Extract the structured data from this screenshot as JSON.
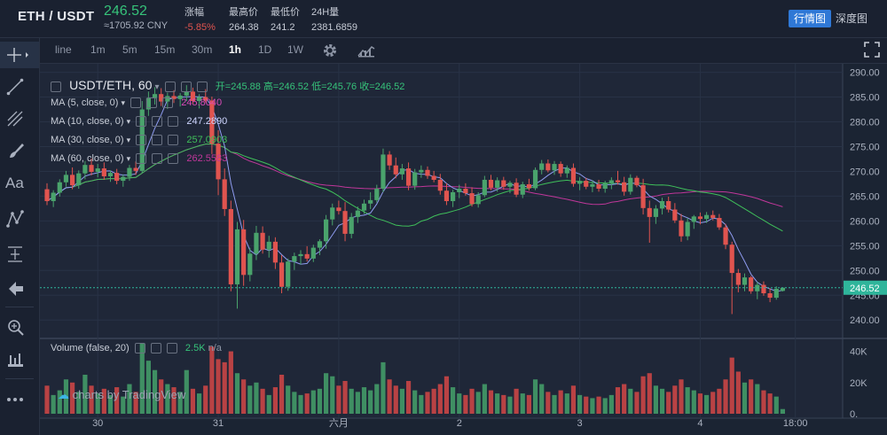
{
  "header": {
    "pair": "ETH / USDT",
    "last_price": "246.52",
    "cny_price": "≈1705.92 CNY",
    "stats": [
      {
        "label": "涨幅",
        "value": "-5.85%",
        "negative": true
      },
      {
        "label": "最高价",
        "value": "264.38",
        "negative": false
      },
      {
        "label": "最低价",
        "value": "241.2",
        "negative": false
      },
      {
        "label": "24H量",
        "value": "2381.6859",
        "negative": false
      }
    ],
    "tabs": [
      {
        "label": "行情图",
        "active": true
      },
      {
        "label": "深度图",
        "active": false
      }
    ]
  },
  "intervals": [
    {
      "label": "line",
      "active": false
    },
    {
      "label": "1m",
      "active": false
    },
    {
      "label": "5m",
      "active": false
    },
    {
      "label": "15m",
      "active": false
    },
    {
      "label": "30m",
      "active": false
    },
    {
      "label": "1h",
      "active": true
    },
    {
      "label": "1D",
      "active": false
    },
    {
      "label": "1W",
      "active": false
    }
  ],
  "toolbar_icons": [
    "settings-gear-icon",
    "indicators-icon",
    "fullscreen-icon"
  ],
  "left_tools": [
    "crosshair-icon",
    "trend-line-icon",
    "fib-icon",
    "brush-icon",
    "text-icon",
    "pattern-icon",
    "measure-icon",
    "back-arrow-icon",
    "zoom-icon",
    "magnet-icon",
    "more-icon"
  ],
  "legend": {
    "symbol": "USDT/ETH, 60",
    "open_label": "开=",
    "open": "245.88",
    "high_label": "高=",
    "high": "246.52",
    "low_label": "低=",
    "low": "245.76",
    "close_label": "收=",
    "close": "246.52",
    "ma": [
      {
        "label": "MA (5, close, 0)",
        "value": "245.8040",
        "color": "#d94bb8"
      },
      {
        "label": "MA (10, close, 0)",
        "value": "247.2890",
        "color": "#cfd6ff"
      },
      {
        "label": "MA (30, close, 0)",
        "value": "257.0903",
        "color": "#3fbf5a"
      },
      {
        "label": "MA (60, close, 0)",
        "value": "262.5583",
        "color": "#c0379a"
      }
    ],
    "volume_label": "Volume (false, 20)",
    "volume_value": "2.5K",
    "volume_na": "n/a"
  },
  "watermark": "charts by TradingView",
  "chart_data": {
    "type": "candlestick",
    "interval": "1h",
    "current_price": 246.52,
    "price_axis": {
      "ticks": [
        240,
        245,
        250,
        255,
        260,
        265,
        270,
        275,
        280,
        285,
        290
      ],
      "range": [
        237,
        291
      ]
    },
    "volume_axis": {
      "ticks": [
        "0.",
        "20K",
        "40K"
      ],
      "range": [
        0,
        46
      ]
    },
    "time_labels": [
      {
        "label": "30",
        "index": 8
      },
      {
        "label": "31",
        "index": 27
      },
      {
        "label": "六月",
        "index": 46
      },
      {
        "label": "2",
        "index": 65
      },
      {
        "label": "3",
        "index": 84
      },
      {
        "label": "4",
        "index": 103
      },
      {
        "label": "18:00",
        "index": 118
      }
    ],
    "colors": {
      "up": "#4aa36c",
      "down": "#e0544f",
      "ma5": "#8f9cf0",
      "ma30": "#3fbf5a",
      "ma60": "#c0379a",
      "price_line": "#2fb59b"
    },
    "candles": [
      [
        266.4,
        267.6,
        263.2,
        264.0,
        18
      ],
      [
        264.0,
        266.2,
        262.8,
        265.7,
        12
      ],
      [
        265.7,
        268.4,
        264.9,
        267.8,
        15
      ],
      [
        267.8,
        270.1,
        266.9,
        269.3,
        22
      ],
      [
        269.3,
        270.8,
        266.4,
        267.2,
        20
      ],
      [
        267.2,
        270.2,
        266.5,
        269.6,
        14
      ],
      [
        269.6,
        272.1,
        268.4,
        271.3,
        25
      ],
      [
        271.3,
        272.6,
        269.2,
        269.9,
        18
      ],
      [
        269.9,
        271.5,
        268.8,
        270.6,
        13
      ],
      [
        270.6,
        271.8,
        268.3,
        269.0,
        16
      ],
      [
        269.0,
        270.2,
        267.9,
        269.7,
        12
      ],
      [
        269.7,
        270.5,
        267.4,
        268.1,
        17
      ],
      [
        268.1,
        269.4,
        266.9,
        268.9,
        11
      ],
      [
        268.9,
        271.3,
        268.1,
        270.7,
        19
      ],
      [
        270.7,
        272.0,
        269.3,
        270.1,
        14
      ],
      [
        270.1,
        284.2,
        269.6,
        282.5,
        45
      ],
      [
        282.5,
        286.1,
        281.2,
        284.8,
        34
      ],
      [
        284.8,
        287.0,
        283.5,
        285.6,
        28
      ],
      [
        285.6,
        286.8,
        283.2,
        284.1,
        22
      ],
      [
        284.1,
        285.9,
        282.6,
        285.2,
        19
      ],
      [
        285.2,
        286.4,
        283.8,
        284.6,
        17
      ],
      [
        284.6,
        285.8,
        283.1,
        285.3,
        14
      ],
      [
        285.3,
        287.4,
        284.2,
        286.1,
        28
      ],
      [
        286.1,
        286.9,
        283.6,
        284.2,
        16
      ],
      [
        284.2,
        285.6,
        282.7,
        285.0,
        13
      ],
      [
        285.0,
        286.6,
        283.9,
        284.3,
        18
      ],
      [
        284.3,
        285.1,
        273.5,
        275.6,
        43
      ],
      [
        275.6,
        278.3,
        265.2,
        268.4,
        35
      ],
      [
        268.4,
        270.6,
        261.0,
        262.4,
        33
      ],
      [
        262.4,
        264.1,
        245.8,
        247.2,
        40
      ],
      [
        247.2,
        259.8,
        242.3,
        258.3,
        26
      ],
      [
        258.3,
        260.2,
        246.9,
        249.1,
        22
      ],
      [
        249.1,
        254.6,
        247.8,
        253.4,
        18
      ],
      [
        253.4,
        259.0,
        252.1,
        257.6,
        20
      ],
      [
        257.6,
        258.9,
        253.4,
        254.2,
        16
      ],
      [
        254.2,
        257.0,
        252.6,
        255.8,
        12
      ],
      [
        255.8,
        256.7,
        250.3,
        251.6,
        17
      ],
      [
        251.6,
        253.1,
        245.4,
        246.7,
        25
      ],
      [
        246.7,
        252.4,
        245.9,
        251.8,
        18
      ],
      [
        251.8,
        253.6,
        250.1,
        252.9,
        14
      ],
      [
        252.9,
        254.1,
        251.2,
        253.3,
        12
      ],
      [
        253.3,
        254.9,
        251.8,
        252.4,
        13
      ],
      [
        252.4,
        255.2,
        251.7,
        254.6,
        15
      ],
      [
        254.6,
        256.3,
        253.1,
        255.9,
        16
      ],
      [
        255.9,
        261.2,
        254.4,
        260.3,
        26
      ],
      [
        260.3,
        263.5,
        259.1,
        262.7,
        24
      ],
      [
        262.7,
        264.1,
        261.3,
        262.0,
        18
      ],
      [
        262.0,
        263.8,
        255.9,
        257.4,
        21
      ],
      [
        257.4,
        261.6,
        256.5,
        260.8,
        16
      ],
      [
        260.8,
        262.9,
        259.6,
        262.1,
        14
      ],
      [
        262.1,
        264.3,
        261.4,
        263.5,
        17
      ],
      [
        263.5,
        265.8,
        262.4,
        264.2,
        15
      ],
      [
        264.2,
        267.3,
        263.7,
        266.5,
        19
      ],
      [
        266.5,
        274.6,
        265.8,
        273.4,
        33
      ],
      [
        273.4,
        274.1,
        270.3,
        271.2,
        22
      ],
      [
        271.2,
        272.8,
        268.6,
        269.4,
        18
      ],
      [
        269.4,
        271.5,
        268.3,
        270.6,
        16
      ],
      [
        270.6,
        271.8,
        266.2,
        267.1,
        21
      ],
      [
        267.1,
        270.5,
        266.3,
        269.8,
        15
      ],
      [
        269.8,
        271.2,
        268.7,
        270.3,
        12
      ],
      [
        270.3,
        271.0,
        268.5,
        269.1,
        14
      ],
      [
        269.1,
        270.1,
        267.8,
        268.3,
        16
      ],
      [
        268.3,
        269.5,
        265.3,
        266.1,
        19
      ],
      [
        266.1,
        267.6,
        263.2,
        264.0,
        24
      ],
      [
        264.0,
        266.3,
        262.8,
        265.8,
        17
      ],
      [
        265.8,
        267.3,
        264.6,
        266.5,
        13
      ],
      [
        266.5,
        267.6,
        265.1,
        265.6,
        12
      ],
      [
        265.6,
        266.8,
        262.9,
        263.4,
        16
      ],
      [
        263.4,
        265.8,
        262.7,
        265.2,
        14
      ],
      [
        265.2,
        269.1,
        264.8,
        268.3,
        19
      ],
      [
        268.3,
        269.3,
        266.2,
        266.7,
        15
      ],
      [
        266.7,
        268.8,
        265.9,
        268.2,
        13
      ],
      [
        268.2,
        268.9,
        266.3,
        266.9,
        12
      ],
      [
        266.9,
        268.1,
        265.6,
        267.7,
        11
      ],
      [
        267.7,
        268.6,
        264.8,
        265.3,
        16
      ],
      [
        265.3,
        267.9,
        264.6,
        267.4,
        13
      ],
      [
        267.4,
        268.5,
        266.1,
        266.6,
        12
      ],
      [
        266.6,
        270.8,
        266.2,
        270.3,
        22
      ],
      [
        270.3,
        272.3,
        269.4,
        271.6,
        19
      ],
      [
        271.6,
        272.4,
        269.8,
        270.2,
        14
      ],
      [
        270.2,
        272.1,
        269.3,
        271.5,
        12
      ],
      [
        271.5,
        272.0,
        268.9,
        269.6,
        15
      ],
      [
        269.6,
        271.2,
        268.7,
        270.7,
        13
      ],
      [
        270.7,
        271.6,
        266.9,
        267.5,
        18
      ],
      [
        267.5,
        268.8,
        266.2,
        268.1,
        12
      ],
      [
        268.1,
        268.7,
        266.4,
        266.9,
        11
      ],
      [
        266.9,
        268.2,
        265.8,
        267.4,
        10
      ],
      [
        267.4,
        268.3,
        265.9,
        266.5,
        11
      ],
      [
        266.5,
        268.1,
        265.7,
        267.6,
        10
      ],
      [
        267.6,
        268.8,
        266.4,
        268.2,
        12
      ],
      [
        268.2,
        270.1,
        267.3,
        267.8,
        17
      ],
      [
        267.8,
        268.9,
        265.1,
        265.9,
        19
      ],
      [
        265.9,
        269.4,
        265.3,
        268.7,
        16
      ],
      [
        268.7,
        269.1,
        266.8,
        267.2,
        14
      ],
      [
        267.2,
        268.5,
        261.3,
        262.6,
        24
      ],
      [
        262.6,
        264.1,
        255.6,
        260.8,
        26
      ],
      [
        260.8,
        263.2,
        259.4,
        262.5,
        18
      ],
      [
        262.5,
        264.7,
        261.3,
        264.0,
        16
      ],
      [
        264.0,
        264.9,
        261.7,
        262.3,
        14
      ],
      [
        262.3,
        263.6,
        259.6,
        260.1,
        18
      ],
      [
        260.1,
        261.4,
        255.8,
        256.9,
        22
      ],
      [
        256.9,
        260.6,
        256.1,
        259.8,
        17
      ],
      [
        259.8,
        261.2,
        258.4,
        260.9,
        15
      ],
      [
        260.9,
        261.7,
        259.3,
        260.4,
        13
      ],
      [
        260.4,
        261.8,
        259.6,
        261.2,
        12
      ],
      [
        261.2,
        262.1,
        260.1,
        260.6,
        14
      ],
      [
        260.6,
        261.4,
        258.2,
        258.7,
        16
      ],
      [
        258.7,
        259.4,
        254.3,
        255.2,
        22
      ],
      [
        255.2,
        255.8,
        241.2,
        249.5,
        36
      ],
      [
        249.5,
        250.3,
        245.6,
        247.1,
        27
      ],
      [
        247.1,
        249.4,
        245.8,
        248.6,
        20
      ],
      [
        248.6,
        248.9,
        245.3,
        245.8,
        22
      ],
      [
        245.8,
        247.7,
        244.2,
        247.1,
        19
      ],
      [
        247.1,
        247.8,
        244.9,
        245.4,
        15
      ],
      [
        245.4,
        246.4,
        243.6,
        244.5,
        13
      ],
      [
        244.5,
        246.8,
        244.1,
        246.3,
        11
      ],
      [
        245.88,
        246.52,
        245.76,
        246.52,
        3
      ]
    ]
  }
}
